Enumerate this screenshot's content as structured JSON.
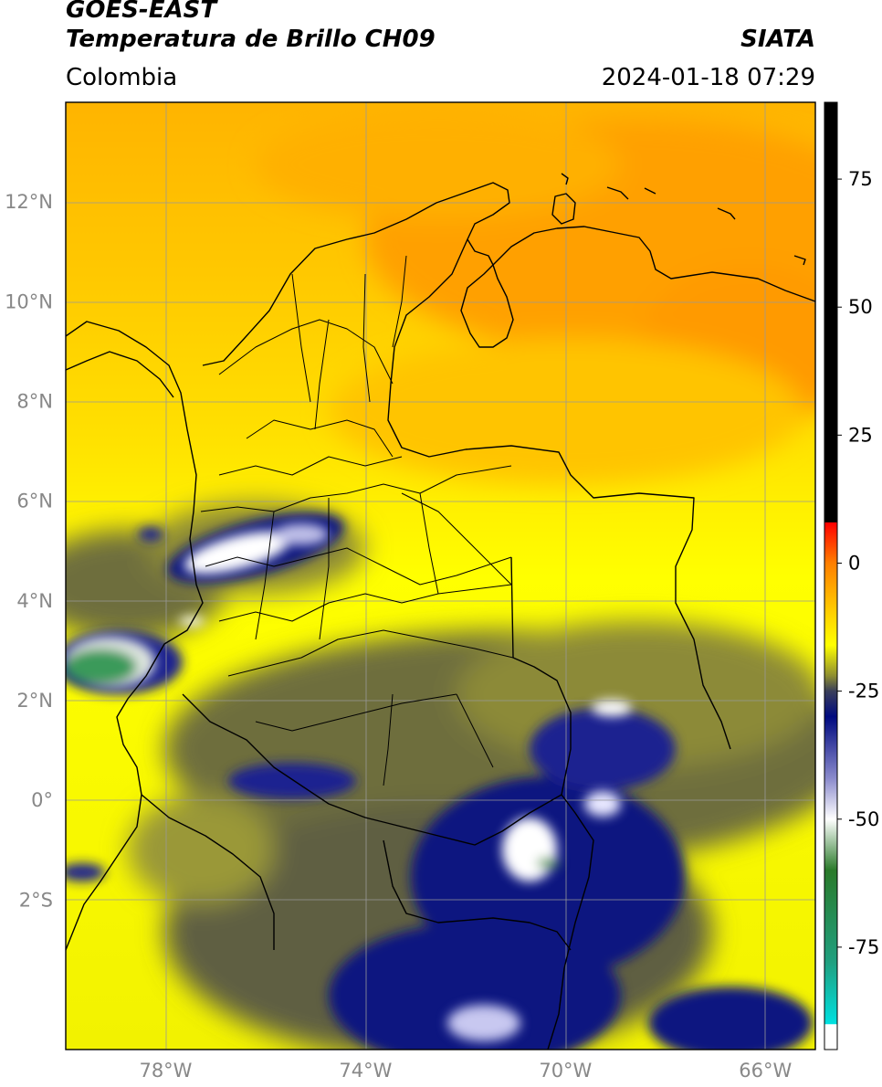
{
  "header": {
    "satellite": "GOES-EAST",
    "product": "Temperatura de Brillo CH09",
    "brand": "SIATA",
    "region": "Colombia",
    "datetime": "2024-01-18 07:29"
  },
  "map": {
    "lon_range": [
      -80,
      -65
    ],
    "lat_range": [
      -5,
      14
    ],
    "lat_ticks": [
      {
        "value": 12,
        "label": "12°N"
      },
      {
        "value": 10,
        "label": "10°N"
      },
      {
        "value": 8,
        "label": "8°N"
      },
      {
        "value": 6,
        "label": "6°N"
      },
      {
        "value": 4,
        "label": "4°N"
      },
      {
        "value": 2,
        "label": "2°N"
      },
      {
        "value": 0,
        "label": "0°"
      },
      {
        "value": -2,
        "label": "2°S"
      }
    ],
    "lon_ticks": [
      {
        "value": -78,
        "label": "78°W"
      },
      {
        "value": -74,
        "label": "74°W"
      },
      {
        "value": -70,
        "label": "70°W"
      },
      {
        "value": -66,
        "label": "66°W"
      }
    ],
    "grid": true
  },
  "colorbar": {
    "range": [
      -95,
      90
    ],
    "ticks": [
      {
        "value": 75,
        "label": "75"
      },
      {
        "value": 50,
        "label": "50"
      },
      {
        "value": 25,
        "label": "25"
      },
      {
        "value": 0,
        "label": "0"
      },
      {
        "value": -25,
        "label": "-25"
      },
      {
        "value": -50,
        "label": "-50"
      },
      {
        "value": -75,
        "label": "-75"
      }
    ],
    "stops": [
      {
        "value": 90,
        "color": "#000000"
      },
      {
        "value": 8,
        "color": "#000000"
      },
      {
        "value": 7.9,
        "color": "#ff0000"
      },
      {
        "value": 0,
        "color": "#ff7f00"
      },
      {
        "value": -10,
        "color": "#ffd200"
      },
      {
        "value": -16,
        "color": "#ffff00"
      },
      {
        "value": -22,
        "color": "#8e8e30"
      },
      {
        "value": -25,
        "color": "#3a3f5a"
      },
      {
        "value": -30,
        "color": "#000a80"
      },
      {
        "value": -42,
        "color": "#8a8acc"
      },
      {
        "value": -50,
        "color": "#ffffff"
      },
      {
        "value": -60,
        "color": "#2a7a2a"
      },
      {
        "value": -78,
        "color": "#20a080"
      },
      {
        "value": -90,
        "color": "#00e0e0"
      },
      {
        "value": -90.1,
        "color": "#ffffff"
      },
      {
        "value": -95,
        "color": "#ffffff"
      }
    ]
  },
  "colors": {
    "warm": "#ffa500",
    "dry": "#ffff00",
    "moist": "#808040",
    "cold": "#1a1f80",
    "coldest": "#ffffff",
    "grid": "#999999"
  }
}
